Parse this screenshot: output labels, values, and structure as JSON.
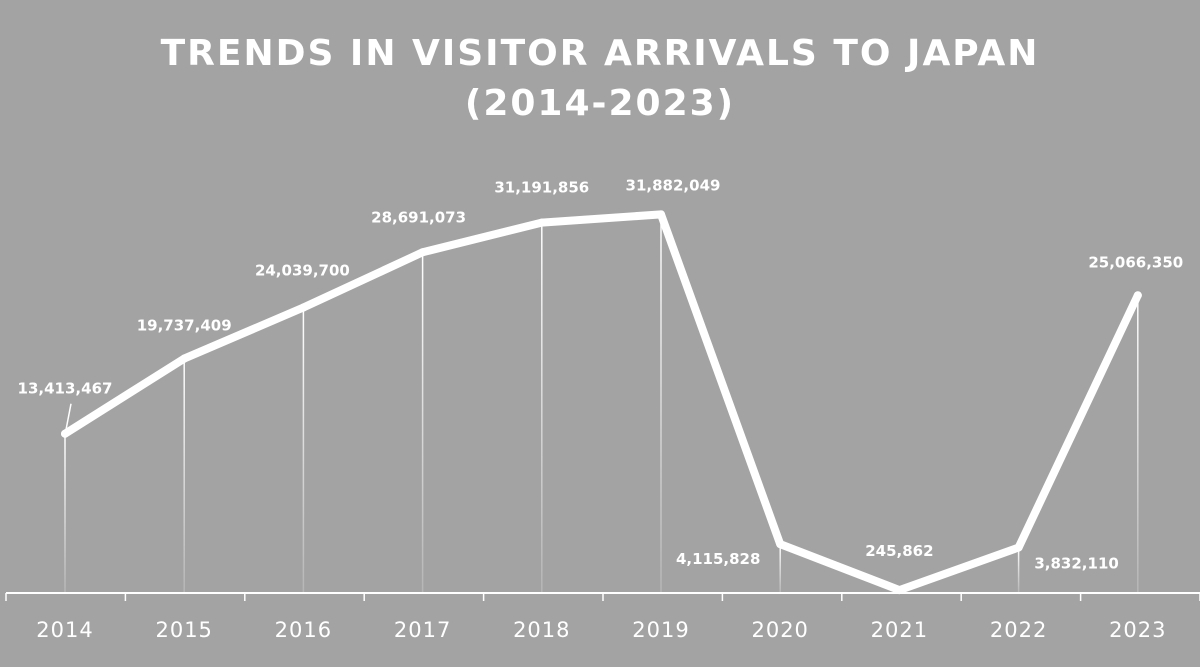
{
  "title": {
    "line1": "TRENDS IN VISITOR ARRIVALS TO JAPAN",
    "line2": "(2014-2023)"
  },
  "colors": {
    "background": "#a3a3a3",
    "line": "#ffffff",
    "text": "#ffffff"
  },
  "chart_data": {
    "type": "line",
    "title": "TRENDS IN VISITOR ARRIVALS TO JAPAN (2014-2023)",
    "xlabel": "",
    "ylabel": "",
    "categories": [
      "2014",
      "2015",
      "2016",
      "2017",
      "2018",
      "2019",
      "2020",
      "2021",
      "2022",
      "2023"
    ],
    "series": [
      {
        "values": [
          13413467,
          19737409,
          24039700,
          28691073,
          31191856,
          31882049,
          4115828,
          245862,
          3832110,
          25066350
        ],
        "labels": [
          "13,413,467",
          "19,737,409",
          "24,039,700",
          "28,691,073",
          "31,191,856",
          "31,882,049",
          "4,115,828",
          "245,862",
          "3,832,110",
          "25,066,350"
        ]
      }
    ],
    "ylim": [
      0,
      32000000
    ],
    "grid": false,
    "legend": "none",
    "drop_lines": true
  }
}
